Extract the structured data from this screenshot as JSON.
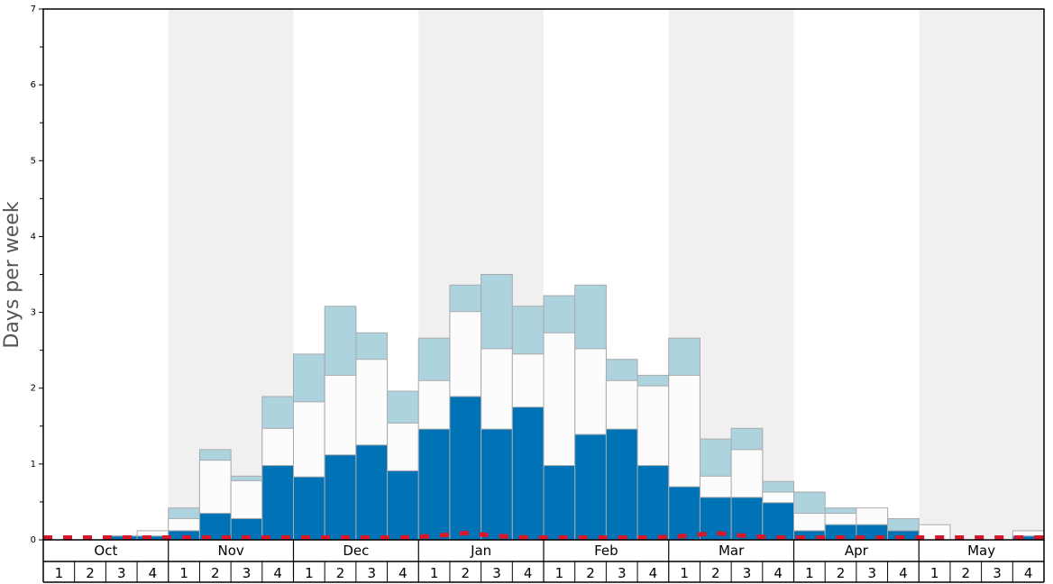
{
  "chart_data": {
    "type": "bar",
    "ylabel": "Days per week",
    "ylim": [
      0,
      7
    ],
    "y_ticks": [
      "0",
      "1",
      "2",
      "3",
      "4",
      "5",
      "6",
      "7"
    ],
    "months": [
      "Oct",
      "Nov",
      "Dec",
      "Jan",
      "Feb",
      "Mar",
      "Apr",
      "May"
    ],
    "weeks": [
      "1",
      "2",
      "3",
      "4"
    ],
    "shaded_months": [
      "Nov",
      "Jan",
      "Mar",
      "May"
    ],
    "colors": {
      "dark_bar": "#0073b7",
      "white_bar": "#fcfcfc",
      "light_bar": "#add3df",
      "bar_edge": "#aaaaaa",
      "shade": "#f0f0f0",
      "dashed_line": "#d7182a"
    },
    "series": [
      {
        "style": "dark",
        "values": [
          0,
          0,
          0.05,
          0.05,
          0.12,
          0.35,
          0.28,
          0.98,
          0.83,
          1.12,
          1.25,
          0.91,
          1.46,
          1.89,
          1.46,
          1.75,
          0.98,
          1.39,
          1.46,
          0.98,
          0.7,
          0.56,
          0.56,
          0.49,
          0.12,
          0.2,
          0.2,
          0.12,
          0,
          0,
          0,
          0.05
        ]
      },
      {
        "style": "white",
        "values": [
          0,
          0,
          0.05,
          0.12,
          0.28,
          1.05,
          0.78,
          1.47,
          1.82,
          2.17,
          2.38,
          1.54,
          2.1,
          3.01,
          2.52,
          2.45,
          2.73,
          2.52,
          2.1,
          2.03,
          2.17,
          0.84,
          1.19,
          0.63,
          0.35,
          0.35,
          0.42,
          0.12,
          0.2,
          0,
          0,
          0.12
        ]
      },
      {
        "style": "light",
        "values": [
          0,
          0,
          0.05,
          0.05,
          0.42,
          1.19,
          0.84,
          1.89,
          2.45,
          3.08,
          2.73,
          1.96,
          2.66,
          3.36,
          3.5,
          3.08,
          3.22,
          3.36,
          2.38,
          2.17,
          2.66,
          1.33,
          1.47,
          0.77,
          0.63,
          0.42,
          0.35,
          0.28,
          0,
          0,
          0,
          0.05
        ]
      }
    ],
    "dashed_line": [
      0.03,
      0.03,
      0.03,
      0.03,
      0.03,
      0.03,
      0.03,
      0.03,
      0.03,
      0.03,
      0.03,
      0.03,
      0.05,
      0.09,
      0.05,
      0.03,
      0.03,
      0.03,
      0.03,
      0.03,
      0.05,
      0.09,
      0.05,
      0.03,
      0.03,
      0.03,
      0.03,
      0.03,
      0.03,
      0.03,
      0.03,
      0.03
    ]
  }
}
